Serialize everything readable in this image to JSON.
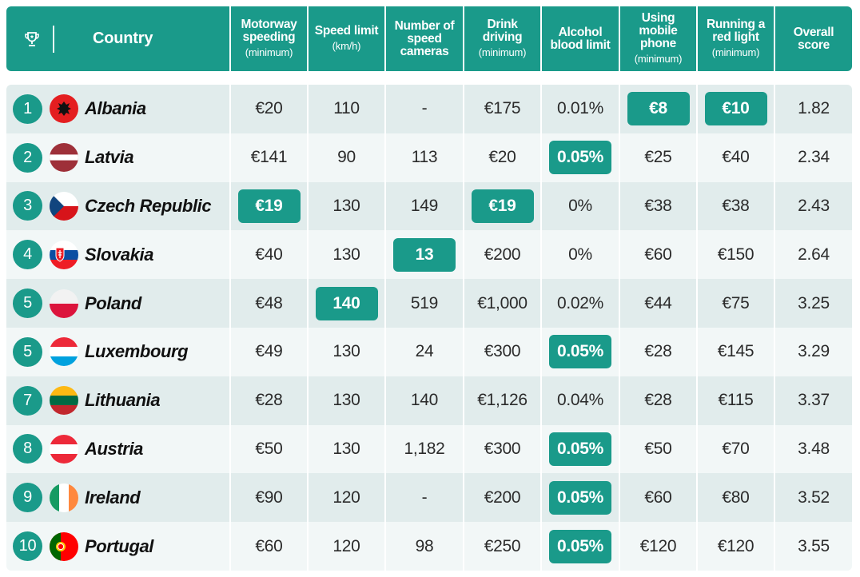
{
  "header": {
    "trophy_icon": "trophy-icon",
    "country": "Country",
    "columns": [
      {
        "main": "Motorway speeding",
        "sub": "(minimum)"
      },
      {
        "main": "Speed limit",
        "sub": "(km/h)"
      },
      {
        "main": "Number of speed cameras",
        "sub": ""
      },
      {
        "main": "Drink driving",
        "sub": "(minimum)"
      },
      {
        "main": "Alcohol blood limit",
        "sub": ""
      },
      {
        "main": "Using mobile phone",
        "sub": "(minimum)"
      },
      {
        "main": "Running a red light",
        "sub": "(minimum)"
      },
      {
        "main": "Overall score",
        "sub": ""
      }
    ]
  },
  "accent_color": "#1a9a8a",
  "rows": [
    {
      "rank": "1",
      "country": "Albania",
      "flag": "flag-albania",
      "values": [
        "€20",
        "110",
        "-",
        "€175",
        "0.01%",
        "€8",
        "€10",
        "1.82"
      ],
      "highlight": [
        5,
        6
      ]
    },
    {
      "rank": "2",
      "country": "Latvia",
      "flag": "flag-latvia",
      "values": [
        "€141",
        "90",
        "113",
        "€20",
        "0.05%",
        "€25",
        "€40",
        "2.34"
      ],
      "highlight": [
        4
      ]
    },
    {
      "rank": "3",
      "country": "Czech Republic",
      "flag": "flag-czech-republic",
      "values": [
        "€19",
        "130",
        "149",
        "€19",
        "0%",
        "€38",
        "€38",
        "2.43"
      ],
      "highlight": [
        0,
        3
      ]
    },
    {
      "rank": "4",
      "country": "Slovakia",
      "flag": "flag-slovakia",
      "values": [
        "€40",
        "130",
        "13",
        "€200",
        "0%",
        "€60",
        "€150",
        "2.64"
      ],
      "highlight": [
        2
      ]
    },
    {
      "rank": "5",
      "country": "Poland",
      "flag": "flag-poland",
      "values": [
        "€48",
        "140",
        "519",
        "€1,000",
        "0.02%",
        "€44",
        "€75",
        "3.25"
      ],
      "highlight": [
        1
      ]
    },
    {
      "rank": "5",
      "country": "Luxembourg",
      "flag": "flag-luxembourg",
      "values": [
        "€49",
        "130",
        "24",
        "€300",
        "0.05%",
        "€28",
        "€145",
        "3.29"
      ],
      "highlight": [
        4
      ]
    },
    {
      "rank": "7",
      "country": "Lithuania",
      "flag": "flag-lithuania",
      "values": [
        "€28",
        "130",
        "140",
        "€1,126",
        "0.04%",
        "€28",
        "€115",
        "3.37"
      ],
      "highlight": []
    },
    {
      "rank": "8",
      "country": "Austria",
      "flag": "flag-austria",
      "values": [
        "€50",
        "130",
        "1,182",
        "€300",
        "0.05%",
        "€50",
        "€70",
        "3.48"
      ],
      "highlight": [
        4
      ]
    },
    {
      "rank": "9",
      "country": "Ireland",
      "flag": "flag-ireland",
      "values": [
        "€90",
        "120",
        "-",
        "€200",
        "0.05%",
        "€60",
        "€80",
        "3.52"
      ],
      "highlight": [
        4
      ]
    },
    {
      "rank": "10",
      "country": "Portugal",
      "flag": "flag-portugal",
      "values": [
        "€60",
        "120",
        "98",
        "€250",
        "0.05%",
        "€120",
        "€120",
        "3.55"
      ],
      "highlight": [
        4
      ]
    }
  ]
}
